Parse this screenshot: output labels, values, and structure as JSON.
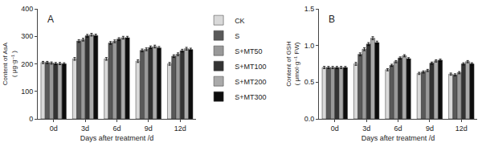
{
  "chart_data": [
    {
      "type": "bar",
      "title": "A",
      "xlabel": "Days after treatment /d",
      "ylabel": "Content of AsA\n( μg·g⁻¹ )",
      "categories": [
        "0d",
        "3d",
        "6d",
        "9d",
        "12d"
      ],
      "ylim": [
        0,
        400
      ],
      "yticks": [
        0,
        100,
        200,
        300,
        400
      ],
      "grid": false,
      "series": [
        {
          "name": "CK",
          "color": "#d9d9d9",
          "values": [
            205,
            218,
            218,
            210,
            200
          ],
          "errors": [
            4,
            5,
            5,
            5,
            5
          ]
        },
        {
          "name": "S",
          "color": "#595959",
          "values": [
            205,
            283,
            276,
            249,
            228
          ],
          "errors": [
            4,
            5,
            5,
            5,
            5
          ]
        },
        {
          "name": "S+MT50",
          "color": "#999999",
          "values": [
            203,
            288,
            282,
            253,
            235
          ],
          "errors": [
            4,
            5,
            5,
            5,
            5
          ]
        },
        {
          "name": "S+MT100",
          "color": "#333333",
          "values": [
            201,
            302,
            290,
            260,
            248
          ],
          "errors": [
            4,
            5,
            5,
            5,
            5
          ]
        },
        {
          "name": "S+MT200",
          "color": "#aaaaaa",
          "values": [
            201,
            306,
            295,
            263,
            255
          ],
          "errors": [
            4,
            5,
            5,
            5,
            5
          ]
        },
        {
          "name": "S+MT300",
          "color": "#0d0d0d",
          "values": [
            200,
            303,
            295,
            258,
            252
          ],
          "errors": [
            4,
            5,
            5,
            5,
            5
          ]
        }
      ]
    },
    {
      "type": "bar",
      "title": "B",
      "xlabel": "Days after treatment /d",
      "ylabel": "Content of GSH\n( μmol·g⁻¹ FW)",
      "categories": [
        "0d",
        "3d",
        "6d",
        "9d",
        "12d"
      ],
      "ylim": [
        0.0,
        1.5
      ],
      "yticks": [
        {
          "value": 0,
          "label": "0.0"
        },
        0.5,
        {
          "value": 1,
          "label": "1.0"
        },
        1.5
      ],
      "grid": false,
      "series": [
        {
          "name": "CK",
          "color": "#d9d9d9",
          "values": [
            0.7,
            0.75,
            0.67,
            0.62,
            0.61
          ],
          "errors": [
            0.015,
            0.02,
            0.015,
            0.015,
            0.015
          ]
        },
        {
          "name": "S",
          "color": "#595959",
          "values": [
            0.7,
            0.88,
            0.73,
            0.64,
            0.6
          ],
          "errors": [
            0.015,
            0.02,
            0.015,
            0.015,
            0.015
          ]
        },
        {
          "name": "S+MT50",
          "color": "#999999",
          "values": [
            0.7,
            0.95,
            0.78,
            0.66,
            0.63
          ],
          "errors": [
            0.015,
            0.02,
            0.015,
            0.015,
            0.015
          ]
        },
        {
          "name": "S+MT100",
          "color": "#333333",
          "values": [
            0.7,
            1.02,
            0.83,
            0.76,
            0.75
          ],
          "errors": [
            0.015,
            0.02,
            0.015,
            0.015,
            0.015
          ]
        },
        {
          "name": "S+MT200",
          "color": "#aaaaaa",
          "values": [
            0.7,
            1.1,
            0.86,
            0.79,
            0.78
          ],
          "errors": [
            0.015,
            0.02,
            0.015,
            0.015,
            0.015
          ]
        },
        {
          "name": "S+MT300",
          "color": "#0d0d0d",
          "values": [
            0.7,
            1.04,
            0.82,
            0.8,
            0.75
          ],
          "errors": [
            0.015,
            0.02,
            0.015,
            0.015,
            0.015
          ]
        }
      ]
    }
  ]
}
